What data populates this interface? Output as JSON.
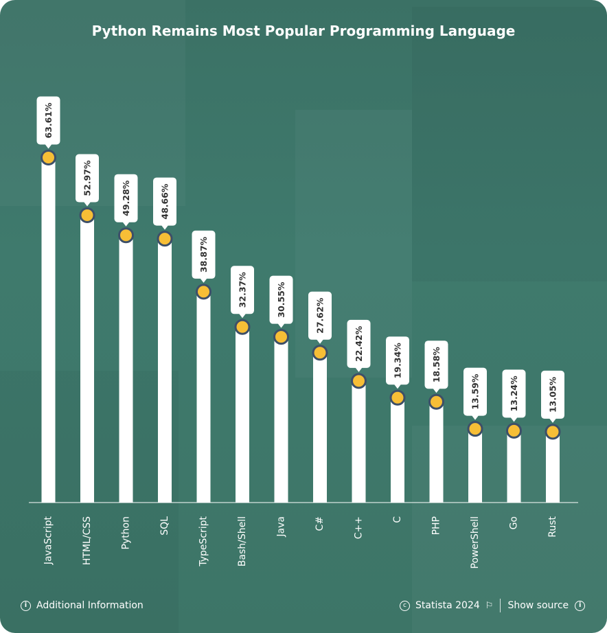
{
  "title": "Python Remains  Most Popular Programming Language",
  "chart_data": {
    "type": "bar",
    "categories": [
      "JavaScript",
      "HTML/CSS",
      "Python",
      "SQL",
      "TypeScript",
      "Bash/Shell",
      "Java",
      "C#",
      "C++",
      "C",
      "PHP",
      "PowerShell",
      "Go",
      "Rust"
    ],
    "values": [
      63.61,
      52.97,
      49.28,
      48.66,
      38.87,
      32.37,
      30.55,
      27.62,
      22.42,
      19.34,
      18.58,
      13.59,
      13.24,
      13.05
    ],
    "value_labels": [
      "63.61%",
      "52.97%",
      "49.28%",
      "48.66%",
      "38.87%",
      "32.37%",
      "30.55%",
      "27.62%",
      "22.42%",
      "19.34%",
      "18.58%",
      "13.59%",
      "13.24%",
      "13.05%"
    ],
    "unit": "%",
    "ylim": [
      0,
      80
    ],
    "xlabel": "",
    "ylabel": "",
    "grid": false,
    "legend": "none",
    "colors": {
      "bar": "#ffffff",
      "marker": "#f7be36",
      "marker_ring": "#3d4f68",
      "background": "#3e776a",
      "label_text": "#333333"
    }
  },
  "footer": {
    "additional_info": "Additional Information",
    "copyright": "Statista 2024",
    "show_source": "Show source"
  },
  "icons": [
    "info-icon",
    "copyright-icon",
    "flag-icon"
  ]
}
